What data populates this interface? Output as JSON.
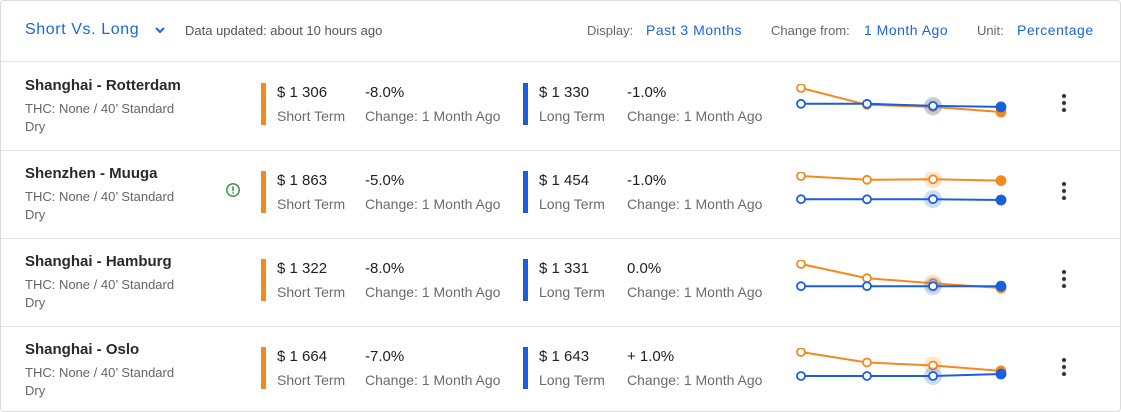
{
  "header": {
    "title": "Short Vs. Long",
    "updated": "Data updated: about 10 hours ago",
    "display_label": "Display:",
    "display_value": "Past 3 Months",
    "change_label": "Change from:",
    "change_value": "1 Month Ago",
    "unit_label": "Unit:",
    "unit_value": "Percentage"
  },
  "colors": {
    "short": "#f5891f",
    "long": "#1a5fe0",
    "accent": "#1a66e0",
    "warning": "#2e8b3e"
  },
  "icons": {
    "title_dropdown": "chevron-down-icon",
    "warning": "alert-circle-icon",
    "menu": "more-vert-icon"
  },
  "rows": [
    {
      "route": "Shanghai - Rotterdam",
      "desc": "THC: None / 40’ Standard Dry",
      "warning": false,
      "short": {
        "price": "$ 1 306",
        "term": "Short Term",
        "change": "-8.0%",
        "change_from": "Change: 1 Month Ago"
      },
      "long": {
        "price": "$ 1 330",
        "term": "Long Term",
        "change": "-1.0%",
        "change_from": "Change: 1 Month Ago"
      },
      "trend": {
        "short": [
          1420,
          1340,
          1330,
          1306
        ],
        "long": [
          1345,
          1345,
          1335,
          1330
        ]
      }
    },
    {
      "route": "Shenzhen - Muuga",
      "desc": "THC: None / 40’ Standard Dry",
      "warning": true,
      "short": {
        "price": "$ 1 863",
        "term": "Short Term",
        "change": "-5.0%",
        "change_from": "Change: 1 Month Ago"
      },
      "long": {
        "price": "$ 1 454",
        "term": "Long Term",
        "change": "-1.0%",
        "change_from": "Change: 1 Month Ago"
      },
      "trend": {
        "short": [
          1960,
          1880,
          1890,
          1863
        ],
        "long": [
          1470,
          1468,
          1470,
          1454
        ]
      }
    },
    {
      "route": "Shanghai - Hamburg",
      "desc": "THC: None / 40’ Standard Dry",
      "warning": false,
      "short": {
        "price": "$ 1 322",
        "term": "Short Term",
        "change": "-8.0%",
        "change_from": "Change: 1 Month Ago"
      },
      "long": {
        "price": "$ 1 331",
        "term": "Long Term",
        "change": "0.0%",
        "change_from": "Change: 1 Month Ago"
      },
      "trend": {
        "short": [
          1440,
          1370,
          1345,
          1322
        ],
        "long": [
          1331,
          1331,
          1331,
          1331
        ]
      }
    },
    {
      "route": "Shanghai - Oslo",
      "desc": "THC: None / 40’ Standard Dry",
      "warning": false,
      "short": {
        "price": "$ 1 664",
        "term": "Short Term",
        "change": "-7.0%",
        "change_from": "Change: 1 Month Ago"
      },
      "long": {
        "price": "$ 1 643",
        "term": "Long Term",
        "change": "+ 1.0%",
        "change_from": "Change: 1 Month Ago"
      },
      "trend": {
        "short": [
          1790,
          1720,
          1700,
          1664
        ],
        "long": [
          1630,
          1630,
          1630,
          1643
        ]
      }
    }
  ]
}
